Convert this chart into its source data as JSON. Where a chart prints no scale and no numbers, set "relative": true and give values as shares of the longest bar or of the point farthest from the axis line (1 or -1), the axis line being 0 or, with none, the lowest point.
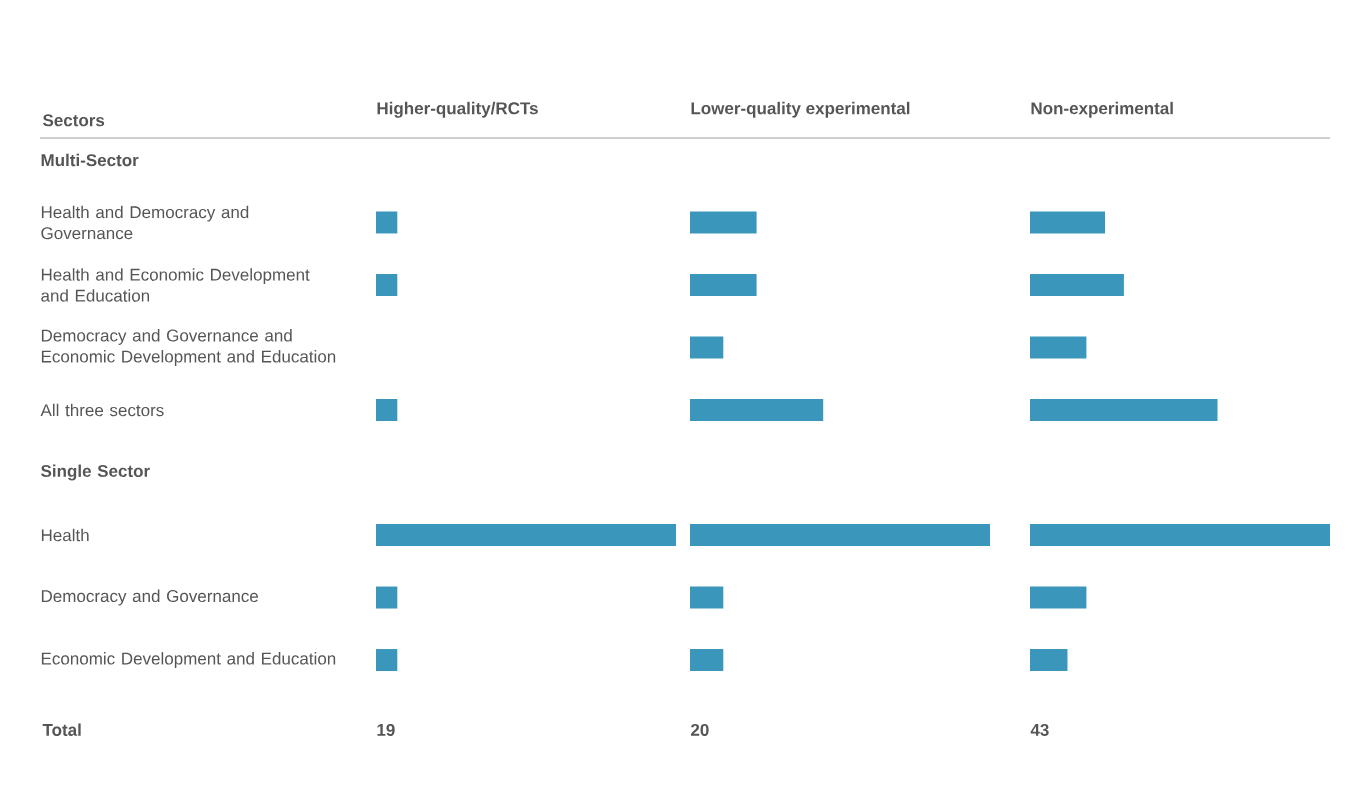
{
  "chart_data": [
    {
      "type": "bar",
      "orientation": "horizontal",
      "relative": true,
      "title": "Higher-quality/RCTs",
      "ylabel": "Sectors",
      "tick_labels": "y",
      "categories": [
        "Multi-Sector",
        "Health and Democracy and Governance",
        "Health and Economic Development and Education",
        "Democracy and Governance and Economic Development and Education",
        "All three sectors",
        "Single Sector",
        "Health",
        "Democracy and Governance",
        "Economic Development and Education"
      ],
      "values": [
        null,
        0.071,
        0.071,
        null,
        0.071,
        null,
        1,
        0.071,
        0.071
      ],
      "color": "#3a97bb",
      "annotations": [
        "Total",
        "19"
      ]
    },
    {
      "type": "bar",
      "orientation": "horizontal",
      "relative": true,
      "title": "Lower-quality experimental",
      "tick_labels": false,
      "values": [
        null,
        0.222,
        0.222,
        0.111,
        0.444,
        null,
        1,
        0.111,
        0.111
      ],
      "color": "#3a97bb",
      "annotations": [
        "20"
      ]
    },
    {
      "type": "bar",
      "orientation": "horizontal",
      "relative": true,
      "title": "Non-experimental",
      "tick_labels": false,
      "values": [
        null,
        0.25,
        0.313,
        0.188,
        0.625,
        null,
        1,
        0.188,
        0.125
      ],
      "color": "#3a97bb",
      "annotations": [
        "43"
      ]
    }
  ]
}
